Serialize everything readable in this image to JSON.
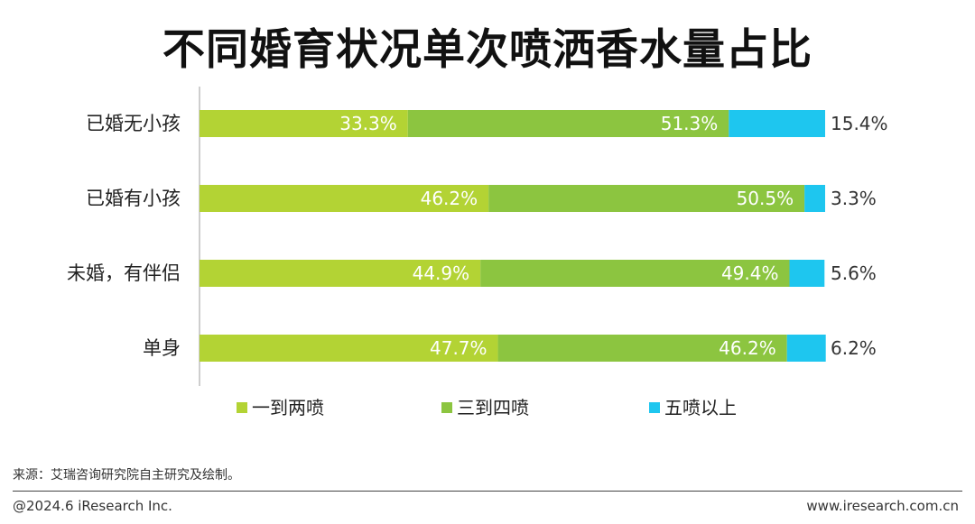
{
  "title": "不同婚育状况单次喷洒香水量占比",
  "source": "来源：艾瑞咨询研究院自主研究及绘制。",
  "footer": {
    "copyright": "@2024.6 iResearch Inc.",
    "website": "www.iresearch.com.cn"
  },
  "colors": {
    "series1": "#b3d334",
    "series2": "#8cc540",
    "series3": "#1ec6ef"
  },
  "chart_data": {
    "type": "bar",
    "orientation": "horizontal",
    "stacked": "percent",
    "title": "不同婚育状况单次喷洒香水量占比",
    "categories": [
      "已婚无小孩",
      "已婚有小孩",
      "未婚，有伴侣",
      "单身"
    ],
    "series": [
      {
        "name": "一到两喷",
        "values": [
          33.3,
          46.2,
          44.9,
          47.7
        ]
      },
      {
        "name": "三到四喷",
        "values": [
          51.3,
          50.5,
          49.4,
          46.2
        ]
      },
      {
        "name": "五喷以上",
        "values": [
          15.4,
          3.3,
          5.6,
          6.2
        ]
      }
    ],
    "value_labels": [
      [
        "33.3%",
        "46.2%",
        "44.9%",
        "47.7%"
      ],
      [
        "51.3%",
        "50.5%",
        "49.4%",
        "46.2%"
      ],
      [
        "15.4%",
        "3.3%",
        "5.6%",
        "6.2%"
      ]
    ],
    "xlim": [
      0,
      100
    ],
    "legend": "bottom",
    "grid": false
  }
}
